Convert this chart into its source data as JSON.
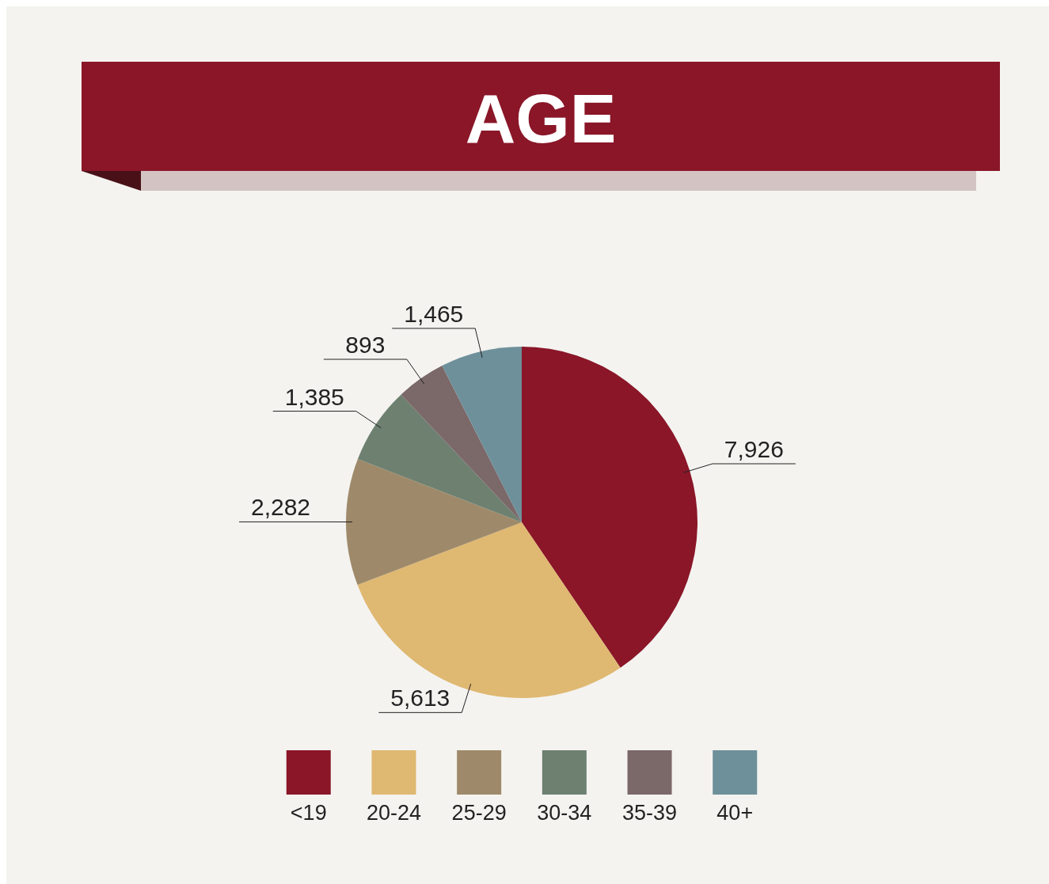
{
  "chart_data": {
    "type": "pie",
    "title": "AGE",
    "categories": [
      "<19",
      "20-24",
      "25-29",
      "30-34",
      "35-39",
      "40+"
    ],
    "values": [
      7926,
      5613,
      2282,
      1385,
      893,
      1465
    ],
    "colors": [
      "#8a1628",
      "#dfb872",
      "#9e8a6a",
      "#6e8070",
      "#7b6869",
      "#6e909a"
    ],
    "value_labels": [
      "7,926",
      "5,613",
      "2,282",
      "1,385",
      "893",
      "1,465"
    ],
    "legend": "bottom"
  }
}
